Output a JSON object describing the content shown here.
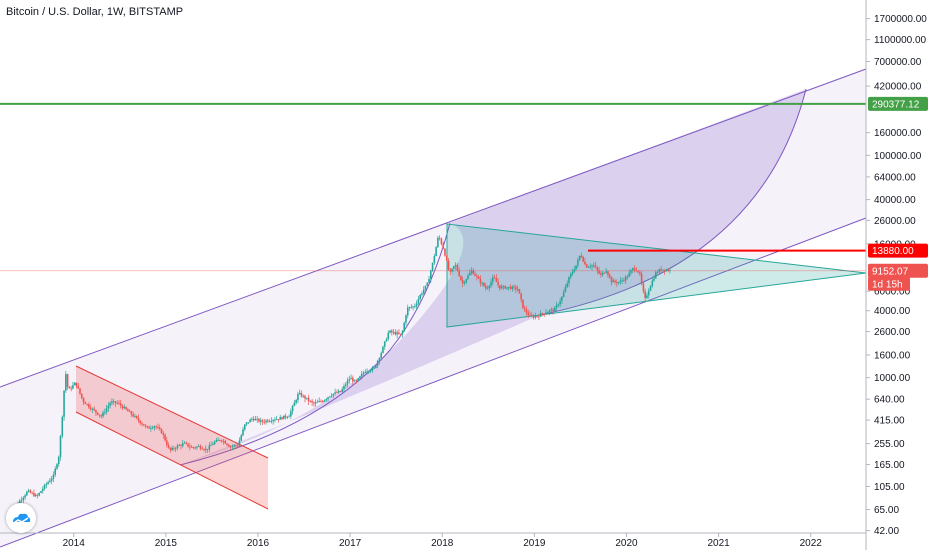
{
  "header": {
    "title": "Bitcoin / U.S. Dollar, 1W, BITSTAMP"
  },
  "colors": {
    "up": "#26a69a",
    "down": "#ef5350",
    "channel": "#7e57c2",
    "green_line": "#43a047",
    "red_line": "#ff0000",
    "price_tag": "#ef5350"
  },
  "logo": {
    "icon": "tradingview-cloud-icon"
  },
  "chart_data": {
    "type": "candlestick",
    "y_scale": "log",
    "ylim": [
      40,
      2500000
    ],
    "xlim": [
      2013.2,
      2022.6
    ],
    "x_ticks": [
      {
        "x": 2014.0,
        "label": "2014"
      },
      {
        "x": 2015.0,
        "label": "2015"
      },
      {
        "x": 2016.0,
        "label": "2016"
      },
      {
        "x": 2017.0,
        "label": "2017"
      },
      {
        "x": 2018.0,
        "label": "2018"
      },
      {
        "x": 2019.0,
        "label": "2019"
      },
      {
        "x": 2020.0,
        "label": "2020"
      },
      {
        "x": 2021.0,
        "label": "2021"
      },
      {
        "x": 2022.0,
        "label": "2022"
      }
    ],
    "y_ticks": [
      {
        "v": 1700000,
        "label": "1700000.00"
      },
      {
        "v": 1100000,
        "label": "1100000.00"
      },
      {
        "v": 700000,
        "label": "700000.00"
      },
      {
        "v": 420000,
        "label": "420000.00"
      },
      {
        "v": 160000,
        "label": "160000.00"
      },
      {
        "v": 100000,
        "label": "100000.00"
      },
      {
        "v": 64000,
        "label": "64000.00"
      },
      {
        "v": 40000,
        "label": "40000.00"
      },
      {
        "v": 26000,
        "label": "26000.00"
      },
      {
        "v": 16000,
        "label": "16000.00"
      },
      {
        "v": 6000,
        "label": "6000.00"
      },
      {
        "v": 4000,
        "label": "4000.00"
      },
      {
        "v": 2600,
        "label": "2600.00"
      },
      {
        "v": 1600,
        "label": "1600.00"
      },
      {
        "v": 1000,
        "label": "1000.00"
      },
      {
        "v": 640,
        "label": "640.00"
      },
      {
        "v": 415,
        "label": "415.00"
      },
      {
        "v": 255,
        "label": "255.00"
      },
      {
        "v": 165,
        "label": "165.00"
      },
      {
        "v": 105,
        "label": "105.00"
      },
      {
        "v": 65,
        "label": "65.00"
      },
      {
        "v": 42,
        "label": "42.00"
      }
    ],
    "price_labels": [
      {
        "v": 290377.12,
        "label": "290377.12",
        "style": "green"
      },
      {
        "v": 13880,
        "label": "13880.00",
        "style": "red"
      },
      {
        "v": 9152.07,
        "label": "9152.07",
        "style": "price"
      },
      {
        "v": 7400,
        "label": "1d 15h",
        "style": "price"
      }
    ],
    "price_path": [
      [
        2013.28,
        55
      ],
      [
        2013.4,
        75
      ],
      [
        2013.5,
        95
      ],
      [
        2013.6,
        85
      ],
      [
        2013.7,
        110
      ],
      [
        2013.78,
        130
      ],
      [
        2013.84,
        200
      ],
      [
        2013.88,
        500
      ],
      [
        2013.91,
        1150
      ],
      [
        2013.94,
        760
      ],
      [
        2014.02,
        900
      ],
      [
        2014.1,
        620
      ],
      [
        2014.2,
        520
      ],
      [
        2014.3,
        450
      ],
      [
        2014.4,
        600
      ],
      [
        2014.48,
        590
      ],
      [
        2014.56,
        520
      ],
      [
        2014.64,
        460
      ],
      [
        2014.72,
        400
      ],
      [
        2014.8,
        350
      ],
      [
        2014.88,
        370
      ],
      [
        2014.96,
        320
      ],
      [
        2015.04,
        220
      ],
      [
        2015.12,
        240
      ],
      [
        2015.2,
        255
      ],
      [
        2015.28,
        235
      ],
      [
        2015.36,
        240
      ],
      [
        2015.44,
        225
      ],
      [
        2015.52,
        260
      ],
      [
        2015.6,
        280
      ],
      [
        2015.7,
        240
      ],
      [
        2015.78,
        245
      ],
      [
        2015.86,
        380
      ],
      [
        2015.94,
        430
      ],
      [
        2016.04,
        400
      ],
      [
        2016.14,
        420
      ],
      [
        2016.24,
        430
      ],
      [
        2016.34,
        460
      ],
      [
        2016.44,
        720
      ],
      [
        2016.52,
        650
      ],
      [
        2016.6,
        580
      ],
      [
        2016.7,
        620
      ],
      [
        2016.8,
        710
      ],
      [
        2016.9,
        750
      ],
      [
        2017.0,
        1000
      ],
      [
        2017.06,
        900
      ],
      [
        2017.16,
        1150
      ],
      [
        2017.26,
        1200
      ],
      [
        2017.34,
        1700
      ],
      [
        2017.42,
        2600
      ],
      [
        2017.5,
        2500
      ],
      [
        2017.56,
        2400
      ],
      [
        2017.62,
        4200
      ],
      [
        2017.7,
        4400
      ],
      [
        2017.76,
        5500
      ],
      [
        2017.84,
        7000
      ],
      [
        2017.9,
        11000
      ],
      [
        2017.96,
        19000
      ],
      [
        2018.02,
        14000
      ],
      [
        2018.08,
        8500
      ],
      [
        2018.14,
        10500
      ],
      [
        2018.22,
        7000
      ],
      [
        2018.32,
        9200
      ],
      [
        2018.4,
        7500
      ],
      [
        2018.48,
        6300
      ],
      [
        2018.56,
        8000
      ],
      [
        2018.62,
        6500
      ],
      [
        2018.72,
        6500
      ],
      [
        2018.82,
        6300
      ],
      [
        2018.88,
        4200
      ],
      [
        2018.96,
        3500
      ],
      [
        2019.04,
        3600
      ],
      [
        2019.12,
        3900
      ],
      [
        2019.22,
        4100
      ],
      [
        2019.3,
        5300
      ],
      [
        2019.38,
        8000
      ],
      [
        2019.46,
        10500
      ],
      [
        2019.5,
        13000
      ],
      [
        2019.56,
        10000
      ],
      [
        2019.64,
        10300
      ],
      [
        2019.72,
        8300
      ],
      [
        2019.78,
        9300
      ],
      [
        2019.84,
        7300
      ],
      [
        2019.92,
        7200
      ],
      [
        2020.0,
        8000
      ],
      [
        2020.08,
        9800
      ],
      [
        2020.14,
        8800
      ],
      [
        2020.2,
        5000
      ],
      [
        2020.26,
        6800
      ],
      [
        2020.32,
        8800
      ],
      [
        2020.38,
        9500
      ],
      [
        2020.44,
        9300
      ],
      [
        2020.48,
        9152
      ]
    ]
  }
}
